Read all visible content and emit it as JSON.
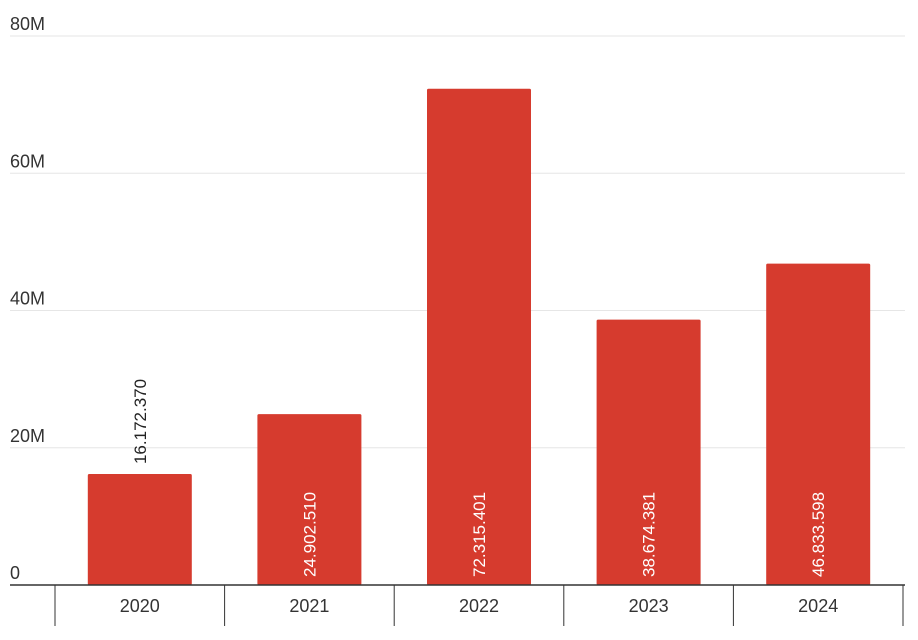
{
  "chart_data": {
    "type": "bar",
    "title": "",
    "xlabel": "",
    "ylabel": "",
    "categories": [
      "2020",
      "2021",
      "2022",
      "2023",
      "2024"
    ],
    "values": [
      16172370,
      24902510,
      72315401,
      38674381,
      46833598
    ],
    "data_labels": [
      "16.172.370",
      "24.902.510",
      "72.315.401",
      "38.674.381",
      "46.833.598"
    ],
    "ylim": [
      0,
      80000000
    ],
    "y_ticks": [
      0,
      20000000,
      40000000,
      60000000,
      80000000
    ],
    "y_tick_labels": [
      "0",
      "20M",
      "40M",
      "60M",
      "80M"
    ],
    "grid": true,
    "legend": "none",
    "bar_color": "#d63b2e",
    "label_inside_color": "#ffffff",
    "label_outside_color": "#222222"
  }
}
